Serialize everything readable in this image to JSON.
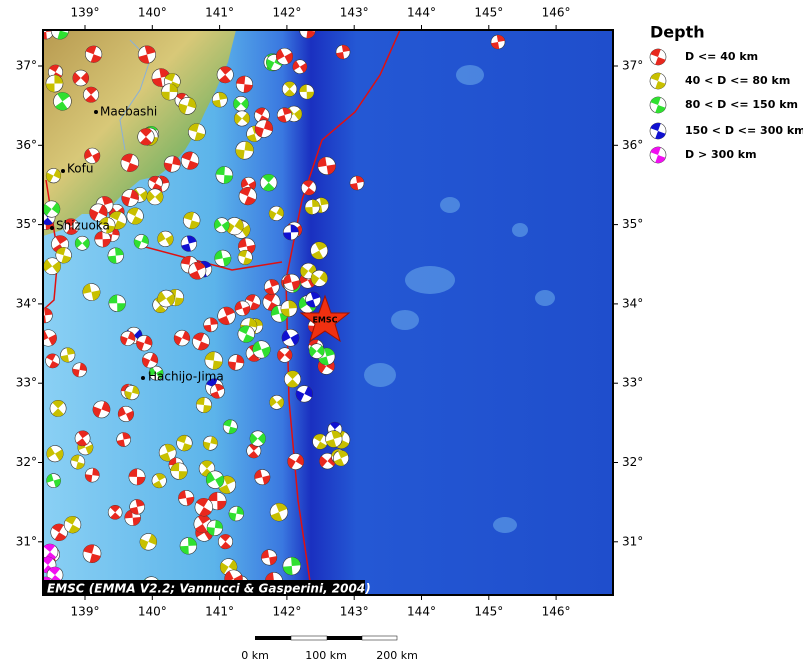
{
  "map": {
    "x_ticks": [
      "139°",
      "140°",
      "141°",
      "142°",
      "143°",
      "144°",
      "145°",
      "146°"
    ],
    "y_ticks": [
      "37°",
      "36°",
      "35°",
      "34°",
      "33°",
      "32°",
      "31°"
    ],
    "cities": [
      "Maebashi",
      "Kofu",
      "Shizuoka",
      "Hachijo-Jima"
    ],
    "epicenter_label": "EMSC",
    "credit": "EMSC (EMMA V2.2; Vannucci & Gasperini, 2004)",
    "scale_labels": [
      "0 km",
      "100 km",
      "200 km"
    ],
    "legend": {
      "title": "Depth",
      "items": [
        {
          "label": "D <= 40 km",
          "color": "#e8281e"
        },
        {
          "label": "40 < D <= 80 km",
          "color": "#c8c000"
        },
        {
          "label": "80 < D <= 150 km",
          "color": "#30e030"
        },
        {
          "label": "150 < D <= 300 km",
          "color": "#1010d0"
        },
        {
          "label": "D > 300 km",
          "color": "#f010f0"
        }
      ]
    }
  }
}
